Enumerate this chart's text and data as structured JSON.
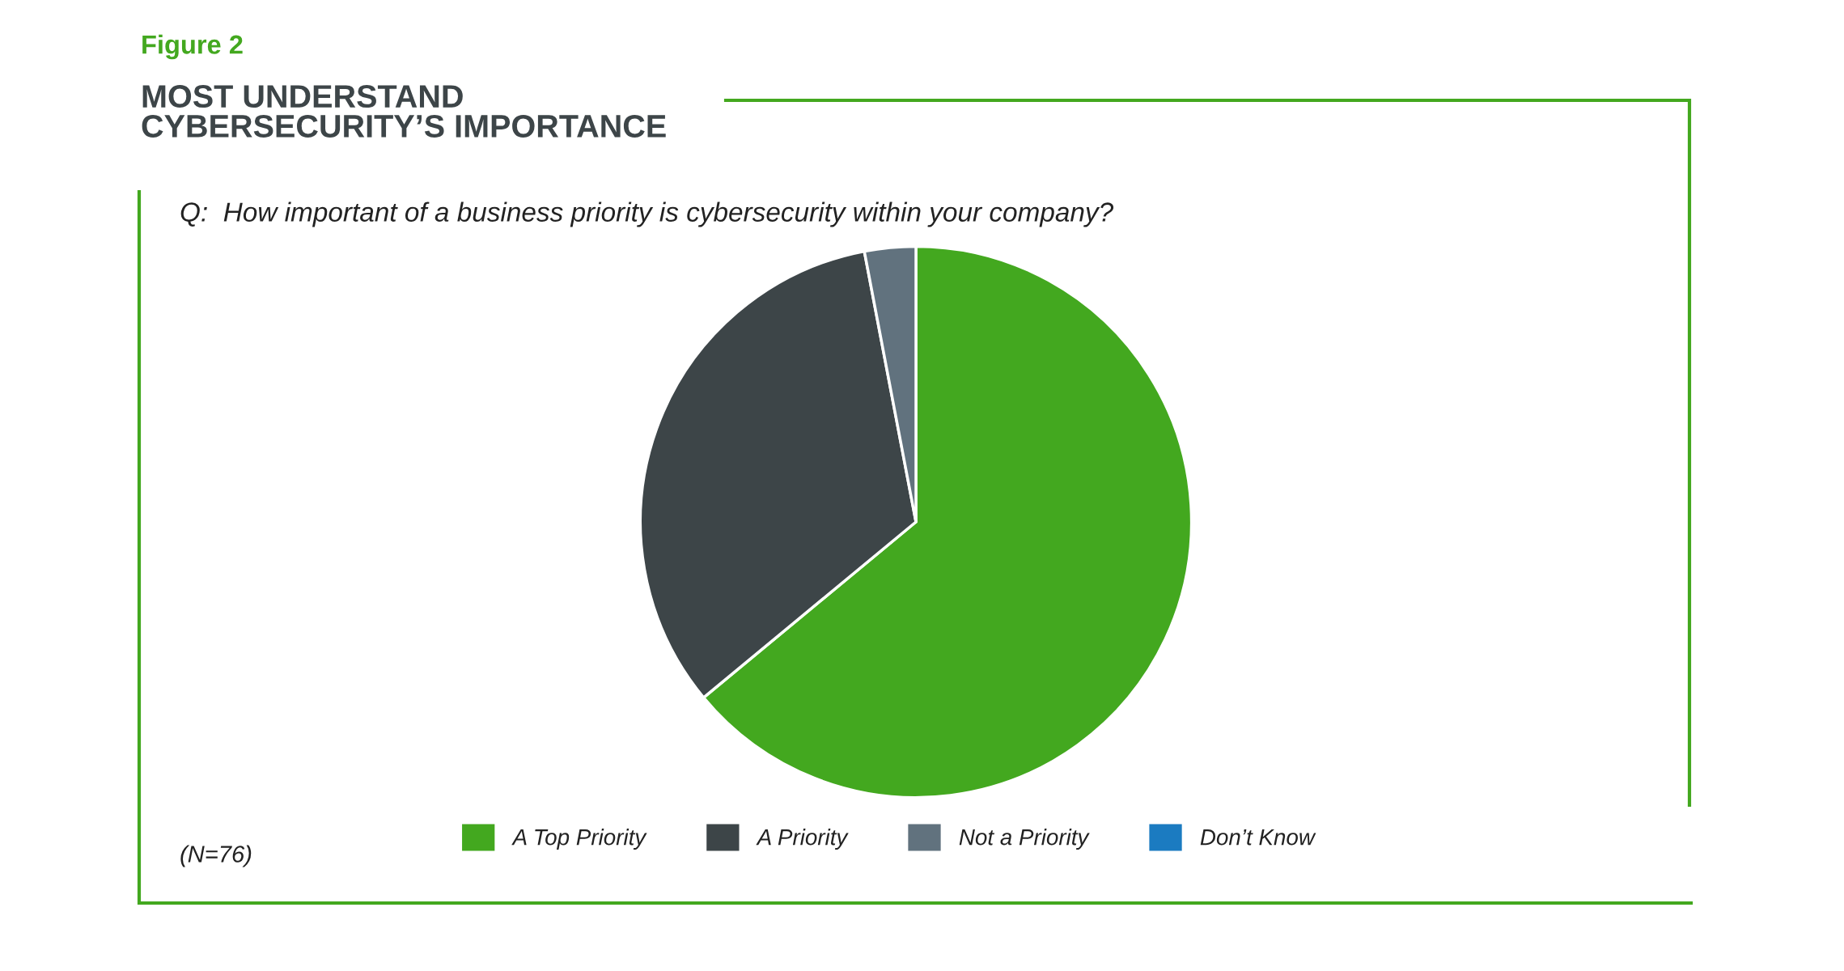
{
  "chart_data": {
    "type": "pie",
    "title": "MOST UNDERSTAND\nCYBERSECURITY’S IMPORTANCE",
    "subtitle": "Q:  How important of a business priority is cybersecurity within your company?",
    "annotations": [
      "Figure 2",
      "(N=76)"
    ],
    "categories": [
      "A Top Priority",
      "A Priority",
      "Not a Priority",
      "Don’t Know"
    ],
    "values": [
      64,
      33,
      3,
      0
    ],
    "colors": [
      "#43a81f",
      "#3d4548",
      "#61727e",
      "#1b7bc1"
    ],
    "legend": "bottom"
  }
}
